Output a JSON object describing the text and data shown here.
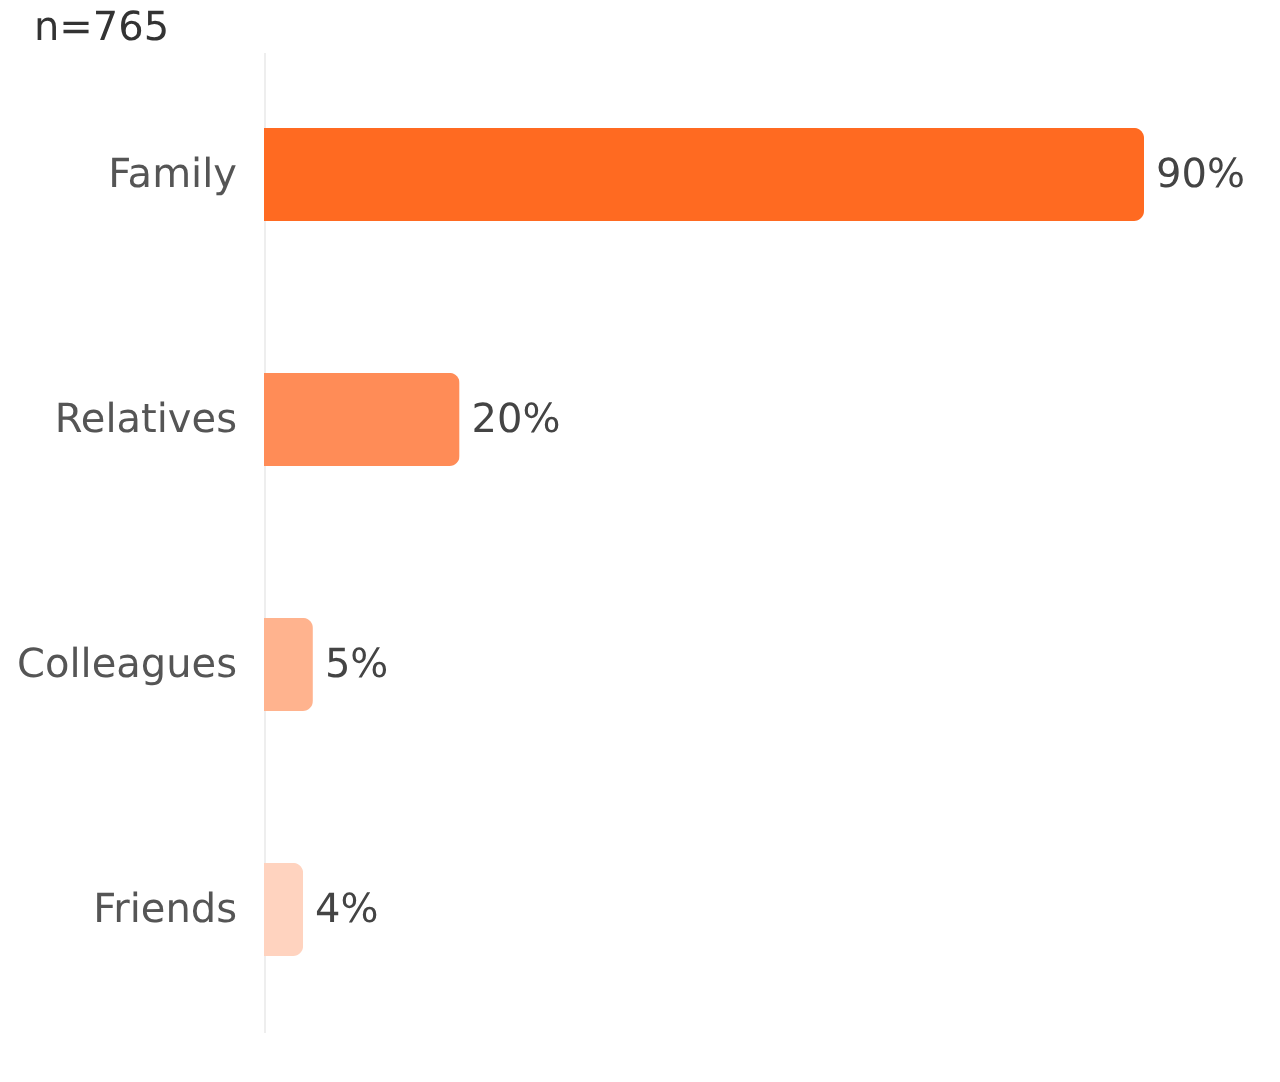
{
  "chart_data": {
    "type": "bar",
    "orientation": "horizontal",
    "title": "n=765",
    "categories": [
      "Family",
      "Relatives",
      "Colleagues",
      "Friends"
    ],
    "values": [
      90,
      20,
      5,
      4
    ],
    "colors": [
      "#ff6a21",
      "#ff8c57",
      "#ffb38e",
      "#ffd3bf"
    ],
    "value_labels": [
      "90%",
      "20%",
      "5%",
      "4%"
    ]
  }
}
